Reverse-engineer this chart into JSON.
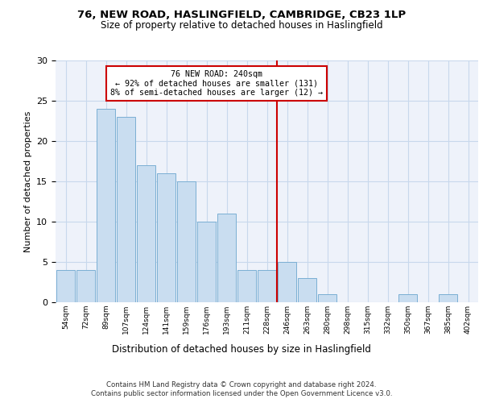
{
  "title1": "76, NEW ROAD, HASLINGFIELD, CAMBRIDGE, CB23 1LP",
  "title2": "Size of property relative to detached houses in Haslingfield",
  "xlabel": "Distribution of detached houses by size in Haslingfield",
  "ylabel": "Number of detached properties",
  "bar_labels": [
    "54sqm",
    "72sqm",
    "89sqm",
    "107sqm",
    "124sqm",
    "141sqm",
    "159sqm",
    "176sqm",
    "193sqm",
    "211sqm",
    "228sqm",
    "246sqm",
    "263sqm",
    "280sqm",
    "298sqm",
    "315sqm",
    "332sqm",
    "350sqm",
    "367sqm",
    "385sqm",
    "402sqm"
  ],
  "bar_values": [
    4,
    4,
    24,
    23,
    17,
    16,
    15,
    10,
    11,
    4,
    4,
    5,
    3,
    1,
    0,
    0,
    0,
    1,
    0,
    1,
    0
  ],
  "bar_color": "#c9ddf0",
  "bar_edge_color": "#7bafd4",
  "grid_color": "#c8d8ec",
  "background_color": "#eef2fa",
  "vline_x_index": 11,
  "vline_color": "#cc0000",
  "annotation_text": "76 NEW ROAD: 240sqm\n← 92% of detached houses are smaller (131)\n8% of semi-detached houses are larger (12) →",
  "annotation_box_color": "#cc0000",
  "ylim": [
    0,
    30
  ],
  "yticks": [
    0,
    5,
    10,
    15,
    20,
    25,
    30
  ],
  "footer1": "Contains HM Land Registry data © Crown copyright and database right 2024.",
  "footer2": "Contains public sector information licensed under the Open Government Licence v3.0."
}
